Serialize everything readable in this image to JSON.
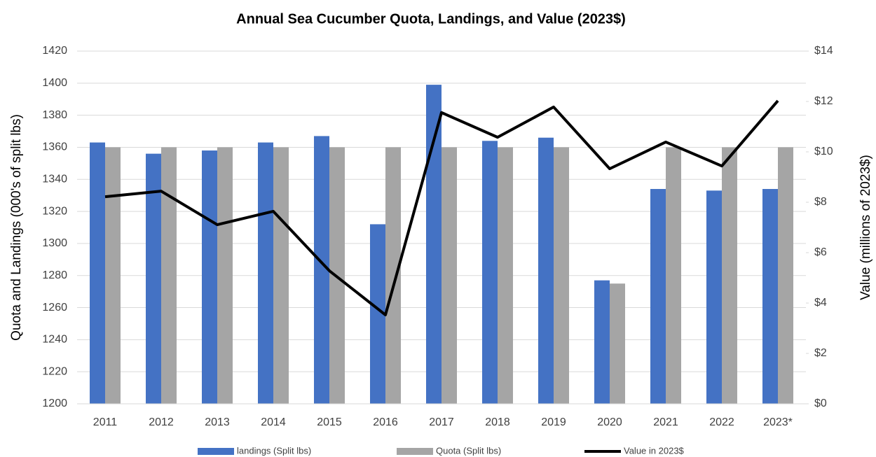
{
  "chart_data": {
    "type": "bar_line",
    "title": "Annual Sea Cucumber Quota, Landings, and Value (2023$)",
    "ylabel": "Quota and Landings (000's of split lbs)",
    "y2label": "Value (millions of 2023$)",
    "categories": [
      "2011",
      "2012",
      "2013",
      "2014",
      "2015",
      "2016",
      "2017",
      "2018",
      "2019",
      "2020",
      "2021",
      "2022",
      "2023*"
    ],
    "series": [
      {
        "name": "landings (Split lbs)",
        "type": "bar",
        "color": "#4472c4",
        "values": [
          1363,
          1356,
          1358,
          1363,
          1367,
          1312,
          1399,
          1364,
          1366,
          1277,
          1334,
          1333,
          1334
        ]
      },
      {
        "name": "Quota (Split lbs)",
        "type": "bar",
        "color": "#a5a5a5",
        "values": [
          1360,
          1360,
          1360,
          1360,
          1360,
          1360,
          1360,
          1360,
          1360,
          1275,
          1360,
          1360,
          1360
        ]
      },
      {
        "name": "Value in 2023$",
        "type": "line",
        "axis": "y2",
        "color": "#000000",
        "values": [
          8.22,
          8.44,
          7.11,
          7.64,
          5.28,
          3.53,
          11.56,
          10.58,
          11.78,
          9.33,
          10.39,
          9.44,
          12.03
        ]
      }
    ],
    "ylim": [
      1200,
      1420
    ],
    "yticks": [
      1200,
      1220,
      1240,
      1260,
      1280,
      1300,
      1320,
      1340,
      1360,
      1380,
      1400,
      1420
    ],
    "y2lim": [
      0,
      14
    ],
    "y2ticks": [
      {
        "value": 0,
        "label": "$0"
      },
      {
        "value": 2,
        "label": "$2"
      },
      {
        "value": 4,
        "label": "$4"
      },
      {
        "value": 6,
        "label": "$6"
      },
      {
        "value": 8,
        "label": "$8"
      },
      {
        "value": 10,
        "label": "$10"
      },
      {
        "value": 12,
        "label": "$12"
      },
      {
        "value": 14,
        "label": "$14"
      }
    ],
    "grid": true,
    "legend": "bottom"
  }
}
